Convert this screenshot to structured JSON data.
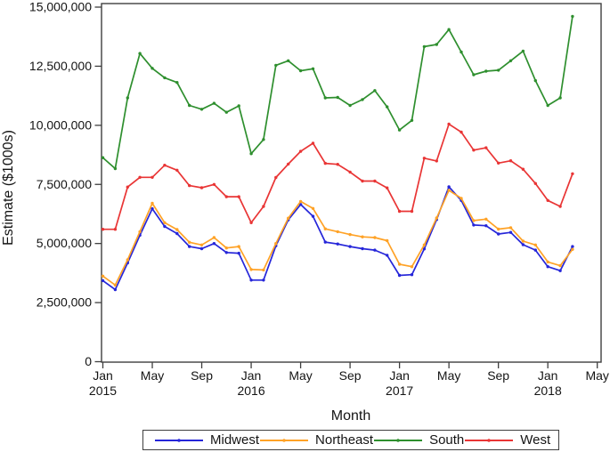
{
  "chart_data": {
    "type": "line",
    "title": "",
    "xlabel": "Month",
    "ylabel": "Estimate ($1000s)",
    "ylim": [
      0,
      15000000
    ],
    "grid": "off",
    "legend": {
      "position": "bottom-center",
      "border": true
    },
    "colors": {
      "axis": "#3f3f3f",
      "text": "#141414",
      "background": "#ffffff"
    },
    "y_axis": {
      "ticks": [
        {
          "value": 0,
          "label": "0"
        },
        {
          "value": 2500000,
          "label": "2,500,000"
        },
        {
          "value": 5000000,
          "label": "5,000,000"
        },
        {
          "value": 7500000,
          "label": "7,500,000"
        },
        {
          "value": 10000000,
          "label": "10,000,000"
        },
        {
          "value": 12500000,
          "label": "12,500,000"
        },
        {
          "value": 15000000,
          "label": "15,000,000"
        }
      ]
    },
    "x_axis": {
      "ticks": [
        {
          "month": "Jan",
          "year": "2015",
          "index": 0
        },
        {
          "month": "May",
          "year": "",
          "index": 4
        },
        {
          "month": "Sep",
          "year": "",
          "index": 8
        },
        {
          "month": "Jan",
          "year": "2016",
          "index": 12
        },
        {
          "month": "May",
          "year": "",
          "index": 16
        },
        {
          "month": "Sep",
          "year": "",
          "index": 20
        },
        {
          "month": "Jan",
          "year": "2017",
          "index": 24
        },
        {
          "month": "May",
          "year": "",
          "index": 28
        },
        {
          "month": "Sep",
          "year": "",
          "index": 32
        },
        {
          "month": "Jan",
          "year": "2018",
          "index": 36
        },
        {
          "month": "May",
          "year": "",
          "index": 40
        }
      ]
    },
    "months": [
      "Jan 2015",
      "Feb 2015",
      "Mar 2015",
      "Apr 2015",
      "May 2015",
      "Jun 2015",
      "Jul 2015",
      "Aug 2015",
      "Sep 2015",
      "Oct 2015",
      "Nov 2015",
      "Dec 2015",
      "Jan 2016",
      "Feb 2016",
      "Mar 2016",
      "Apr 2016",
      "May 2016",
      "Jun 2016",
      "Jul 2016",
      "Aug 2016",
      "Sep 2016",
      "Oct 2016",
      "Nov 2016",
      "Dec 2016",
      "Jan 2017",
      "Feb 2017",
      "Mar 2017",
      "Apr 2017",
      "May 2017",
      "Jun 2017",
      "Jul 2017",
      "Aug 2017",
      "Sep 2017",
      "Oct 2017",
      "Nov 2017",
      "Dec 2017",
      "Jan 2018",
      "Feb 2018",
      "Mar 2018"
    ],
    "series": [
      {
        "name": "Midwest",
        "color": "#2626d9",
        "values": [
          3430000,
          3050000,
          4180000,
          5350000,
          6470000,
          5720000,
          5420000,
          4870000,
          4780000,
          5000000,
          4620000,
          4590000,
          3450000,
          3450000,
          4900000,
          6000000,
          6650000,
          6150000,
          5060000,
          4980000,
          4870000,
          4780000,
          4720000,
          4500000,
          3650000,
          3680000,
          4770000,
          6010000,
          7400000,
          6820000,
          5780000,
          5750000,
          5400000,
          5470000,
          4950000,
          4720000,
          4020000,
          3850000,
          4870000
        ]
      },
      {
        "name": "Northeast",
        "color": "#ffa226",
        "values": [
          3620000,
          3240000,
          4310000,
          5500000,
          6700000,
          5880000,
          5590000,
          5050000,
          4940000,
          5250000,
          4810000,
          4870000,
          3900000,
          3880000,
          5000000,
          6070000,
          6780000,
          6480000,
          5620000,
          5500000,
          5380000,
          5280000,
          5250000,
          5120000,
          4120000,
          4020000,
          4940000,
          6080000,
          7250000,
          6910000,
          5970000,
          6030000,
          5610000,
          5670000,
          5100000,
          4940000,
          4220000,
          4060000,
          4750000
        ]
      },
      {
        "name": "South",
        "color": "#2e8f2e",
        "values": [
          8630000,
          8170000,
          11160000,
          13040000,
          12410000,
          12010000,
          11810000,
          10840000,
          10680000,
          10930000,
          10550000,
          10820000,
          8800000,
          9400000,
          12540000,
          12730000,
          12310000,
          12390000,
          11160000,
          11180000,
          10840000,
          11090000,
          11470000,
          10780000,
          9800000,
          10210000,
          13330000,
          13420000,
          14050000,
          13100000,
          12140000,
          12290000,
          12330000,
          12730000,
          13140000,
          11890000,
          10840000,
          11160000,
          14610000
        ]
      },
      {
        "name": "West",
        "color": "#e93535",
        "values": [
          5600000,
          5600000,
          7390000,
          7800000,
          7800000,
          8310000,
          8100000,
          7450000,
          7360000,
          7500000,
          6980000,
          6980000,
          5880000,
          6570000,
          7790000,
          8360000,
          8900000,
          9240000,
          8390000,
          8350000,
          8020000,
          7640000,
          7640000,
          7350000,
          6360000,
          6360000,
          8610000,
          8490000,
          10050000,
          9710000,
          8950000,
          9050000,
          8400000,
          8500000,
          8140000,
          7540000,
          6820000,
          6570000,
          7950000
        ]
      }
    ]
  }
}
